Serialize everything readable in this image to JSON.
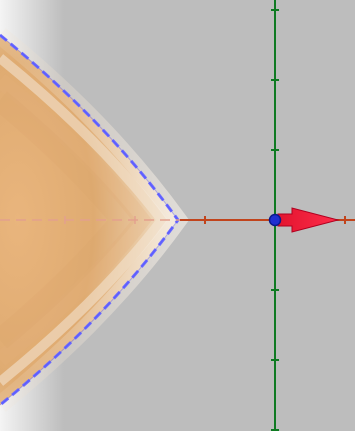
{
  "scene": {
    "colors": {
      "background": "#bdbdbd",
      "left_edge_fade": "#f2f2f2",
      "surface_light": "#f2e6d6",
      "surface_mid": "#e6b985",
      "surface_dark": "#d69a5c",
      "outline": "#6b6bff",
      "x_axis": "#c1441c",
      "y_axis": "#0f7a22",
      "vector": "#e8173a",
      "origin_point": "#1f2fd1"
    },
    "objects": {
      "surface": "paraboloid-surface",
      "x_axis": "x-axis",
      "y_axis": "y-axis",
      "vector": "vector-arrow",
      "origin_point": "origin-point"
    }
  }
}
